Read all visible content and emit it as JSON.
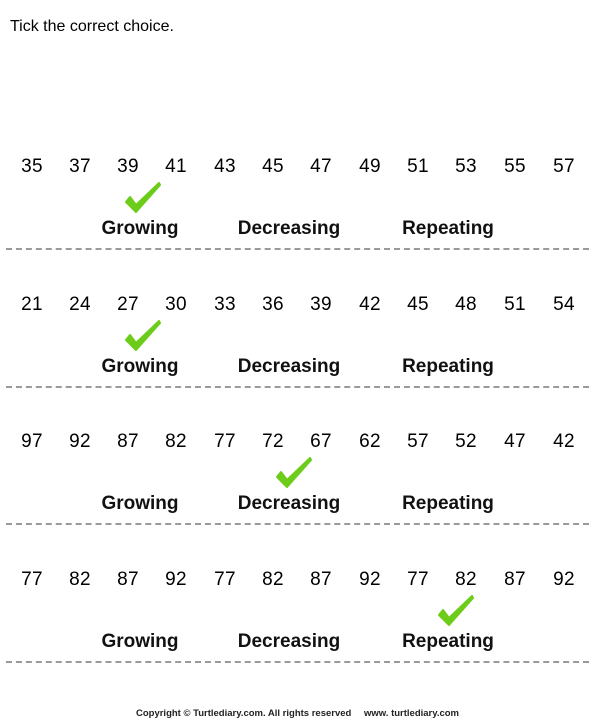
{
  "instruction": "Tick the correct choice.",
  "options": [
    "Growing",
    "Decreasing",
    "Repeating"
  ],
  "questions": [
    {
      "numbers": [
        "35",
        "37",
        "39",
        "41",
        "43",
        "45",
        "47",
        "49",
        "51",
        "53",
        "55",
        "57"
      ],
      "answer": "Growing"
    },
    {
      "numbers": [
        "21",
        "24",
        "27",
        "30",
        "33",
        "36",
        "39",
        "42",
        "45",
        "48",
        "51",
        "54"
      ],
      "answer": "Growing"
    },
    {
      "numbers": [
        "97",
        "92",
        "87",
        "82",
        "77",
        "72",
        "67",
        "62",
        "57",
        "52",
        "47",
        "42"
      ],
      "answer": "Decreasing"
    },
    {
      "numbers": [
        "77",
        "82",
        "87",
        "92",
        "77",
        "82",
        "87",
        "92",
        "77",
        "82",
        "87",
        "92"
      ],
      "answer": "Repeating"
    }
  ],
  "footer": {
    "copyright": "Copyright © Turtlediary.com. All rights reserved",
    "website": "www. turtlediary.com"
  },
  "colors": {
    "check": "#6dcc1a",
    "divider": "#9a9a9a"
  },
  "icons": {
    "tick": "check-mark-icon"
  }
}
